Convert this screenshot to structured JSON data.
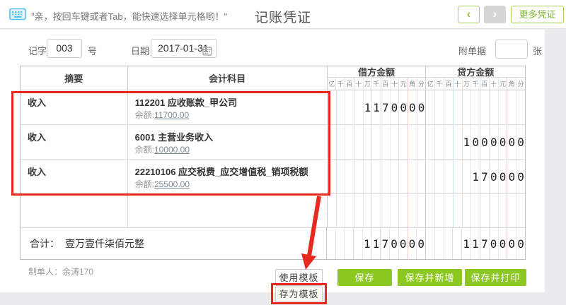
{
  "topbar": {
    "hint": "\"亲，按回车键或者Tab，能快速选择单元格哟！\"",
    "title": "记账凭证",
    "more_button": "更多凭证",
    "icons": {
      "prev": "‹",
      "next": "›"
    }
  },
  "voucher_info": {
    "word_prefix": "记字第",
    "word_number": "003",
    "word_suffix": "号",
    "date_label": "日期：",
    "date_value": "2017-01-31",
    "attachment_label": "附单据",
    "attachment_value": "",
    "attachment_suffix": "张"
  },
  "table": {
    "headers": {
      "summary": "摘要",
      "account": "会计科目",
      "debit": "借方金额",
      "credit": "贷方金额"
    },
    "digit_labels": [
      "亿",
      "千",
      "百",
      "十",
      "万",
      "千",
      "百",
      "十",
      "元",
      "角",
      "分"
    ],
    "rows": [
      {
        "summary": "收入",
        "account": "112201 应收账款_甲公司",
        "balance_label": "余额:",
        "balance": "11700.00",
        "debit": [
          "",
          "",
          "",
          "",
          "1",
          "1",
          "7",
          "0",
          "0",
          "0",
          "0"
        ],
        "credit": [
          "",
          "",
          "",
          "",
          "",
          "",
          "",
          "",
          "",
          "",
          ""
        ]
      },
      {
        "summary": "收入",
        "account": "6001 主营业务收入",
        "balance_label": "余额:",
        "balance": "10000.00",
        "debit": [
          "",
          "",
          "",
          "",
          "",
          "",
          "",
          "",
          "",
          "",
          ""
        ],
        "credit": [
          "",
          "",
          "",
          "",
          "1",
          "0",
          "0",
          "0",
          "0",
          "0",
          "0"
        ]
      },
      {
        "summary": "收入",
        "account": "22210106 应交税费_应交增值税_销项税额",
        "balance_label": "余额:",
        "balance": "25500.00",
        "debit": [
          "",
          "",
          "",
          "",
          "",
          "",
          "",
          "",
          "",
          "",
          ""
        ],
        "credit": [
          "",
          "",
          "",
          "",
          "",
          "1",
          "7",
          "0",
          "0",
          "0",
          "0"
        ]
      },
      {
        "summary": "",
        "account": "",
        "balance_label": "",
        "balance": "",
        "debit": [
          "",
          "",
          "",
          "",
          "",
          "",
          "",
          "",
          "",
          "",
          ""
        ],
        "credit": [
          "",
          "",
          "",
          "",
          "",
          "",
          "",
          "",
          "",
          "",
          ""
        ]
      }
    ],
    "total": {
      "label": "合计：",
      "amount_text": "壹万壹仟柒佰元整",
      "debit": [
        "",
        "",
        "",
        "",
        "1",
        "1",
        "7",
        "0",
        "0",
        "0",
        "0"
      ],
      "credit": [
        "",
        "",
        "",
        "",
        "1",
        "1",
        "7",
        "0",
        "0",
        "0",
        "0"
      ]
    }
  },
  "footer": {
    "preparer": "制单人：余涛170",
    "use_template": "使用模板",
    "save_template": "存为模板",
    "save": "保存",
    "save_new": "保存并新增",
    "save_print": "保存并打印"
  },
  "colors": {
    "green": "#8cc722",
    "annotation_red": "#e8291f",
    "keyboard_blue": "#56c1e8"
  }
}
